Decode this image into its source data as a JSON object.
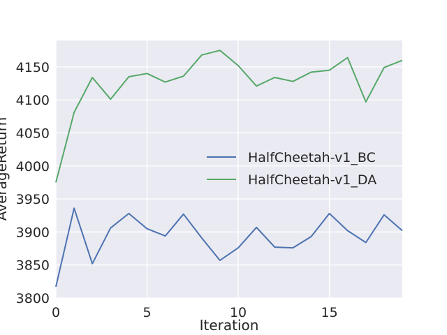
{
  "chart_data": {
    "type": "line",
    "title": "",
    "xlabel": "Iteration",
    "ylabel": "AverageReturn",
    "xlim": [
      0,
      19
    ],
    "ylim": [
      3800,
      4190
    ],
    "x": [
      0,
      1,
      2,
      3,
      4,
      5,
      6,
      7,
      8,
      9,
      10,
      11,
      12,
      13,
      14,
      15,
      16,
      17,
      18,
      19
    ],
    "xticks": [
      0,
      5,
      10,
      15
    ],
    "yticks": [
      3800,
      3850,
      3900,
      3950,
      4000,
      4050,
      4100,
      4150
    ],
    "grid": true,
    "legend_position": "center-right",
    "series": [
      {
        "name": "HalfCheetah-v1_BC",
        "color": "#4c72b0",
        "values": [
          3817,
          3936,
          3852,
          3906,
          3928,
          3905,
          3894,
          3927,
          3891,
          3857,
          3876,
          3907,
          3877,
          3876,
          3893,
          3928,
          3902,
          3884,
          3926,
          3902
        ]
      },
      {
        "name": "HalfCheetah-v1_DA",
        "color": "#55a868",
        "values": [
          3975,
          4081,
          4134,
          4101,
          4135,
          4140,
          4127,
          4136,
          4168,
          4175,
          4152,
          4121,
          4134,
          4128,
          4142,
          4145,
          4164,
          4097,
          4149,
          4160
        ]
      }
    ]
  }
}
